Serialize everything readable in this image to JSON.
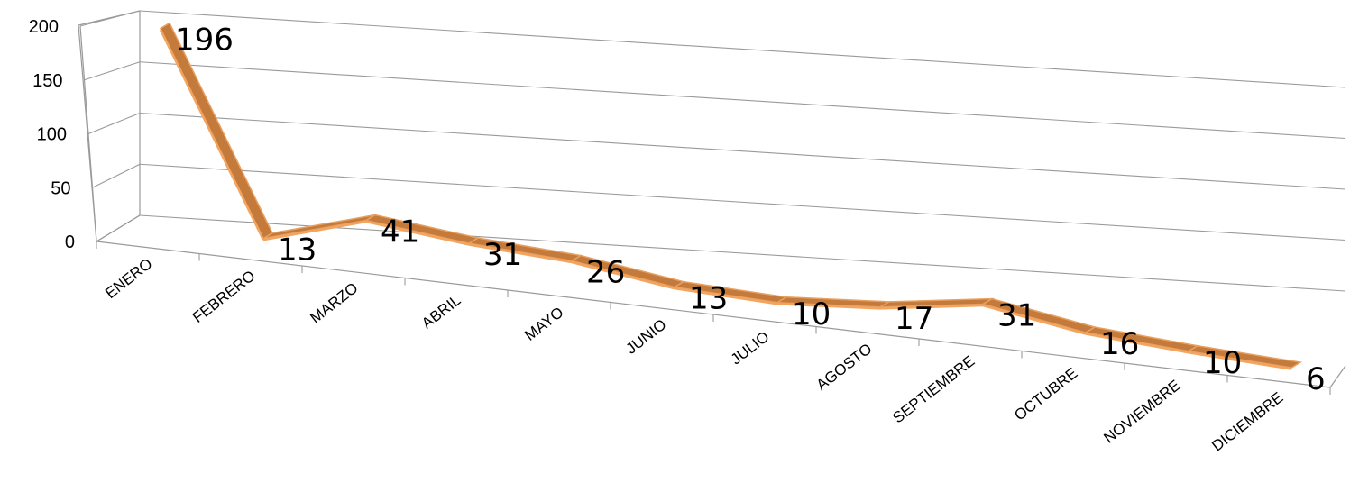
{
  "chart_data": {
    "type": "line",
    "style": "3d",
    "categories": [
      "ENERO",
      "FEBRERO",
      "MARZO",
      "ABRIL",
      "MAYO",
      "JUNIO",
      "JULIO",
      "AGOSTO",
      "SEPTIEMBRE",
      "OCTUBRE",
      "NOVIEMBRE",
      "DICIEMBRE"
    ],
    "series": [
      {
        "values": [
          196,
          13,
          41,
          31,
          26,
          13,
          10,
          17,
          31,
          16,
          10,
          6
        ],
        "color": "#c47a3a"
      }
    ],
    "data_labels": [
      "196",
      "13",
      "41",
      "31",
      "26",
      "13",
      "10",
      "17",
      "31",
      "16",
      "10",
      "6"
    ],
    "ylim": [
      0,
      200
    ],
    "yticks": [
      "0",
      "50",
      "100",
      "150",
      "200"
    ],
    "grid": true,
    "legend": "none",
    "title": "",
    "xlabel": "",
    "ylabel": ""
  }
}
